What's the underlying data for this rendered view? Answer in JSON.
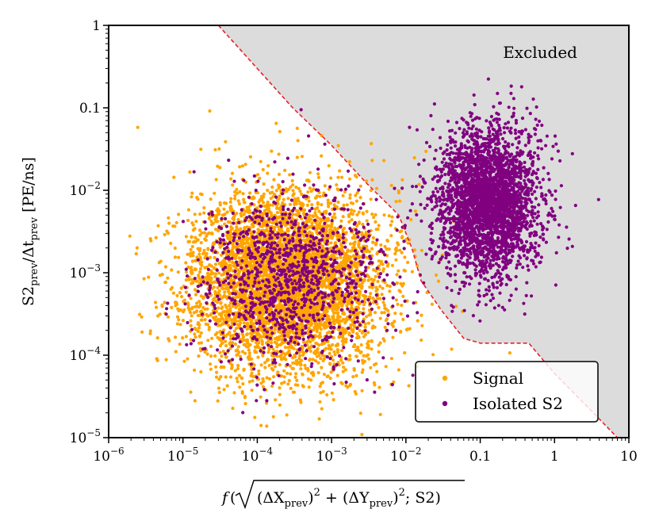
{
  "chart_data": {
    "type": "scatter",
    "title": "",
    "xscale": "log",
    "yscale": "log",
    "xlim": [
      1e-06,
      10
    ],
    "ylim": [
      1e-05,
      1
    ],
    "xlabel_func": "f",
    "xlabel_rest": "(ΔX",
    "xlabel_sub": "prev",
    "xlabel_text": "f(√((ΔX_prev)² + (ΔY_prev)²); S2)",
    "ylabel_main": "S2",
    "ylabel_sub1": "prev",
    "ylabel_mid": "/Δt",
    "ylabel_sub2": "prev",
    "ylabel_unit": " [PE/ns]",
    "xticks": [
      {
        "value": 1e-06,
        "base": "10",
        "exp": "−6"
      },
      {
        "value": 1e-05,
        "base": "10",
        "exp": "−5"
      },
      {
        "value": 0.0001,
        "base": "10",
        "exp": "−4"
      },
      {
        "value": 0.001,
        "base": "10",
        "exp": "−3"
      },
      {
        "value": 0.01,
        "base": "10",
        "exp": "−2"
      },
      {
        "value": 0.1,
        "base": "0.1",
        "exp": ""
      },
      {
        "value": 1,
        "base": "1",
        "exp": ""
      },
      {
        "value": 10,
        "base": "10",
        "exp": ""
      }
    ],
    "yticks": [
      {
        "value": 1e-05,
        "base": "10",
        "exp": "−5"
      },
      {
        "value": 0.0001,
        "base": "10",
        "exp": "−4"
      },
      {
        "value": 0.001,
        "base": "10",
        "exp": "−3"
      },
      {
        "value": 0.01,
        "base": "10",
        "exp": "−2"
      },
      {
        "value": 0.1,
        "base": "0.1",
        "exp": ""
      },
      {
        "value": 1,
        "base": "1",
        "exp": ""
      }
    ],
    "annotation": "Excluded",
    "legend_position": "lower-right",
    "series": [
      {
        "name": "Signal",
        "color": "#FFA500",
        "distribution": "log-normal cluster",
        "center_log10": [
          -3.6,
          -3.1
        ],
        "sigma_log10": [
          0.65,
          0.55
        ],
        "count": 5200,
        "seed": 11
      },
      {
        "name": "Isolated S2",
        "color": "#800080",
        "distribution": "log-normal clusters",
        "clusters": [
          {
            "center_log10": [
              -3.6,
              -3.05
            ],
            "sigma_log10": [
              0.6,
              0.5
            ],
            "count": 1100
          },
          {
            "center_log10": [
              -0.9,
              -2.15
            ],
            "sigma_log10": [
              0.35,
              0.45
            ],
            "count": 3000
          }
        ],
        "seed": 29
      }
    ],
    "exclusion_boundary": {
      "style": "dashed",
      "color": "#e8232a",
      "fill": "#dcdcdc",
      "points": [
        [
          3e-05,
          1
        ],
        [
          0.0001,
          0.3
        ],
        [
          0.0003,
          0.1
        ],
        [
          0.001,
          0.035
        ],
        [
          0.003,
          0.012
        ],
        [
          0.008,
          0.005
        ],
        [
          0.012,
          0.002
        ],
        [
          0.016,
          0.0008
        ],
        [
          0.03,
          0.00035
        ],
        [
          0.06,
          0.00016
        ],
        [
          0.1,
          0.00014
        ],
        [
          0.45,
          0.00014
        ],
        [
          1,
          6e-05
        ],
        [
          3,
          2.2e-05
        ],
        [
          7,
          1e-05
        ]
      ]
    }
  }
}
